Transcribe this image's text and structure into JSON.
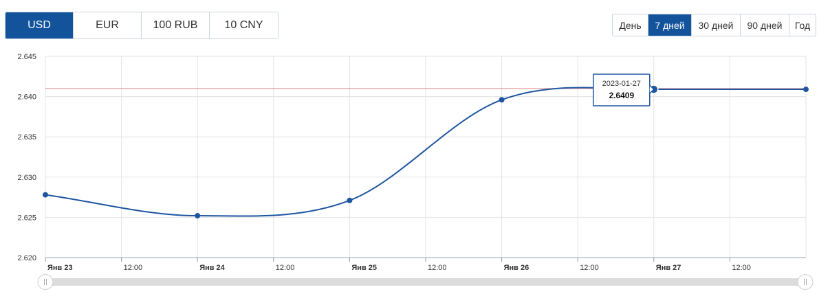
{
  "currencies": {
    "selected": "USD",
    "items": [
      {
        "label": "USD"
      },
      {
        "label": "EUR"
      },
      {
        "label": "100 RUB"
      },
      {
        "label": "10 CNY"
      }
    ]
  },
  "periods": {
    "selected": "7 дней",
    "items": [
      {
        "label": "День"
      },
      {
        "label": "7 дней"
      },
      {
        "label": "30 дней"
      },
      {
        "label": "90 дней"
      },
      {
        "label": "Год"
      }
    ]
  },
  "colors": {
    "accent": "#12539b",
    "line": "#1e55a0",
    "reference_line": "#d98a8a",
    "grid": "#e3e3e3"
  },
  "chart_data": {
    "type": "line",
    "title": "",
    "xlabel": "",
    "ylabel": "",
    "xlim": [
      "2023-01-23 00:00",
      "2023-01-28 00:00"
    ],
    "ylim": [
      2.62,
      2.645
    ],
    "yticks": [
      "2.620",
      "2.625",
      "2.630",
      "2.635",
      "2.640",
      "2.645"
    ],
    "xticks": [
      {
        "label": "Янв 23",
        "at": "2023-01-23 00:00",
        "bold": true
      },
      {
        "label": "12:00",
        "at": "2023-01-23 12:00",
        "bold": false
      },
      {
        "label": "Янв 24",
        "at": "2023-01-24 00:00",
        "bold": true
      },
      {
        "label": "12:00",
        "at": "2023-01-24 12:00",
        "bold": false
      },
      {
        "label": "Янв 25",
        "at": "2023-01-25 00:00",
        "bold": true
      },
      {
        "label": "12:00",
        "at": "2023-01-25 12:00",
        "bold": false
      },
      {
        "label": "Янв 26",
        "at": "2023-01-26 00:00",
        "bold": true
      },
      {
        "label": "12:00",
        "at": "2023-01-26 12:00",
        "bold": false
      },
      {
        "label": "Янв 27",
        "at": "2023-01-27 00:00",
        "bold": true
      },
      {
        "label": "12:00",
        "at": "2023-01-27 12:00",
        "bold": false
      }
    ],
    "grid": true,
    "series": [
      {
        "points": [
          {
            "x": "2023-01-23",
            "y": 2.6278
          },
          {
            "x": "2023-01-24",
            "y": 2.6252
          },
          {
            "x": "2023-01-25",
            "y": 2.6271
          },
          {
            "x": "2023-01-26",
            "y": 2.6396
          },
          {
            "x": "2023-01-27",
            "y": 2.6409
          },
          {
            "x": "2023-01-28",
            "y": 2.6409
          }
        ]
      }
    ],
    "reference_line": 2.641,
    "tooltip": {
      "date": "2023-01-27",
      "value": "2.6409"
    }
  }
}
